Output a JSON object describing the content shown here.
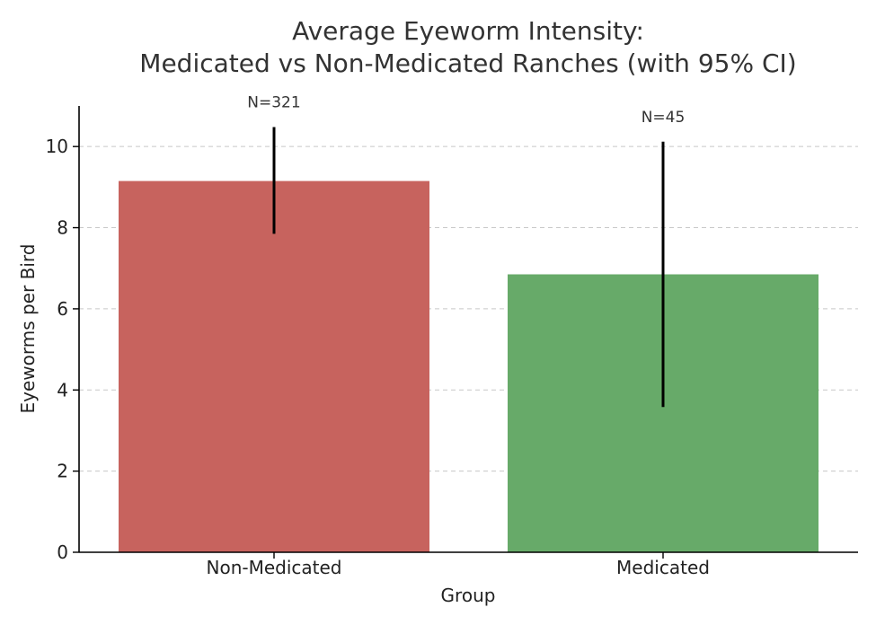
{
  "chart_data": {
    "type": "bar",
    "title_lines": [
      "Average Eyeworm Intensity:",
      "Medicated vs Non-Medicated Ranches (with 95% CI)"
    ],
    "xlabel": "Group",
    "ylabel": "Eyeworms per Bird",
    "categories": [
      "Non-Medicated",
      "Medicated"
    ],
    "values": [
      9.15,
      6.85
    ],
    "ci_low": [
      7.85,
      3.58
    ],
    "ci_high": [
      10.48,
      10.12
    ],
    "n_labels": [
      "N=321",
      "N=45"
    ],
    "colors": [
      "#c7635e",
      "#67aa69"
    ],
    "ylim": [
      0,
      11
    ],
    "yticks": [
      0,
      2,
      4,
      6,
      8,
      10
    ],
    "grid": true
  }
}
